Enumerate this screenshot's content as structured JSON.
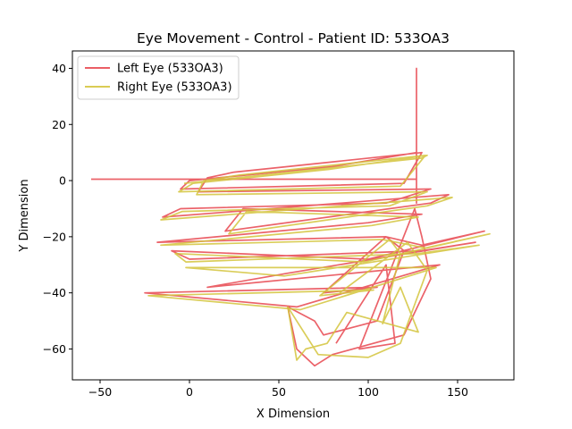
{
  "chart_data": {
    "type": "line",
    "title": "Eye Movement - Control - Patient ID: 533OA3",
    "xlabel": "X Dimension",
    "ylabel": "Y Dimension",
    "xlim": [
      -65.5,
      181.5
    ],
    "ylim": [
      -71,
      46.2
    ],
    "xticks": [
      {
        "value": -50,
        "label": "−50"
      },
      0,
      50,
      100,
      150
    ],
    "yticks": [
      {
        "value": -60,
        "label": "−60"
      },
      {
        "value": -40,
        "label": "−40"
      },
      {
        "value": -20,
        "label": "−20"
      },
      0,
      20,
      40
    ],
    "legend": "upper left",
    "grid": false,
    "series": [
      {
        "name": "Left Eye (533OA3)",
        "color": "#e8474f",
        "x": [
          -55,
          127,
          127,
          127,
          127,
          80,
          0,
          -5,
          120,
          130,
          25,
          10,
          5,
          135,
          110,
          -5,
          -15,
          145,
          135,
          20,
          30,
          130,
          100,
          -18,
          110,
          130,
          165,
          100,
          -10,
          0,
          130,
          160,
          55,
          10,
          140,
          60,
          -25,
          105,
          75,
          110,
          120,
          105,
          75,
          70,
          55,
          60,
          70,
          80,
          120,
          135,
          130,
          126,
          95,
          115,
          110,
          100,
          82
        ],
        "values": [
          0.5,
          0.5,
          40,
          -8,
          10,
          5,
          0,
          -3,
          -1,
          10,
          3,
          1,
          -4,
          -3,
          -8,
          -10,
          -13,
          -5,
          -8,
          -18,
          -10,
          -12,
          -15,
          -22,
          -20,
          -23,
          -18,
          -28,
          -25,
          -28,
          -25,
          -22,
          -33,
          -38,
          -30,
          -45,
          -40,
          -38,
          -40,
          -20,
          -25,
          -50,
          -55,
          -50,
          -45,
          -60,
          -66,
          -62,
          -55,
          -35,
          -20,
          -10,
          -60,
          -58,
          -30,
          -40,
          -58
        ]
      },
      {
        "name": "Right Eye (533OA3)",
        "color": "#d4c43c",
        "x": [
          -3,
          130,
          133,
          78,
          2,
          -6,
          118,
          132,
          28,
          8,
          4,
          133,
          112,
          -4,
          -16,
          147,
          133,
          22,
          32,
          128,
          102,
          -16,
          108,
          132,
          168,
          98,
          -8,
          -2,
          128,
          162,
          53,
          -2,
          138,
          62,
          -23,
          103,
          73,
          112,
          118,
          108,
          118,
          128,
          88,
          77,
          65,
          60,
          55,
          72,
          100,
          118,
          133,
          122,
          84
        ],
        "values": [
          -1,
          8,
          9,
          4,
          -1,
          -4,
          -2,
          9,
          2,
          0,
          -5,
          -4,
          -9,
          -11,
          -14,
          -6,
          -9,
          -19,
          -11,
          -13,
          -16,
          -23,
          -21,
          -24,
          -19,
          -29,
          -26,
          -29,
          -26,
          -23,
          -34,
          -31,
          -31,
          -46,
          -41,
          -39,
          -41,
          -21,
          -26,
          -51,
          -38,
          -54,
          -47,
          -58,
          -60,
          -64,
          -45,
          -62,
          -63,
          -58,
          -32,
          -22,
          -40
        ]
      }
    ]
  }
}
